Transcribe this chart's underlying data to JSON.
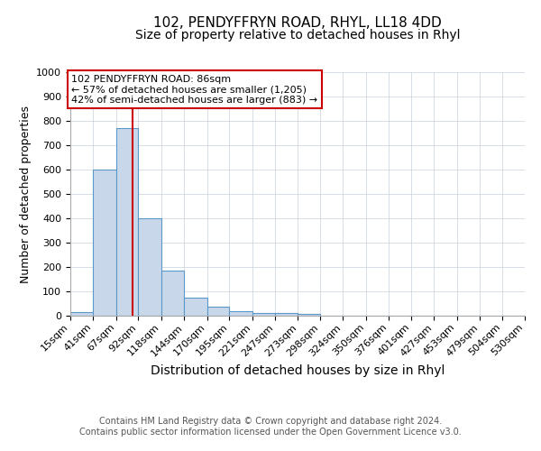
{
  "title1": "102, PENDYFFRYN ROAD, RHYL, LL18 4DD",
  "title2": "Size of property relative to detached houses in Rhyl",
  "xlabel": "Distribution of detached houses by size in Rhyl",
  "ylabel": "Number of detached properties",
  "bin_edges": [
    15,
    41,
    67,
    92,
    118,
    144,
    170,
    195,
    221,
    247,
    273,
    298,
    324,
    350,
    376,
    401,
    427,
    453,
    479,
    504,
    530
  ],
  "bar_heights": [
    15,
    600,
    770,
    400,
    185,
    75,
    38,
    18,
    12,
    12,
    8,
    0,
    0,
    0,
    0,
    0,
    0,
    0,
    0,
    0
  ],
  "bar_color": "#c8d8ea",
  "bar_edge_color": "#5b97c8",
  "property_size": 86,
  "red_line_color": "#cc0000",
  "annotation_text": "102 PENDYFFRYN ROAD: 86sqm\n← 57% of detached houses are smaller (1,205)\n42% of semi-detached houses are larger (883) →",
  "annotation_box_color": "#ffffff",
  "annotation_box_edge": "#cc0000",
  "ylim": [
    0,
    1000
  ],
  "yticks": [
    0,
    100,
    200,
    300,
    400,
    500,
    600,
    700,
    800,
    900,
    1000
  ],
  "footnote1": "Contains HM Land Registry data © Crown copyright and database right 2024.",
  "footnote2": "Contains public sector information licensed under the Open Government Licence v3.0.",
  "bg_color": "#ffffff",
  "grid_color": "#c8d0da",
  "title1_fontsize": 11,
  "title2_fontsize": 10,
  "xlabel_fontsize": 10,
  "ylabel_fontsize": 9,
  "tick_fontsize": 8,
  "annot_fontsize": 8
}
